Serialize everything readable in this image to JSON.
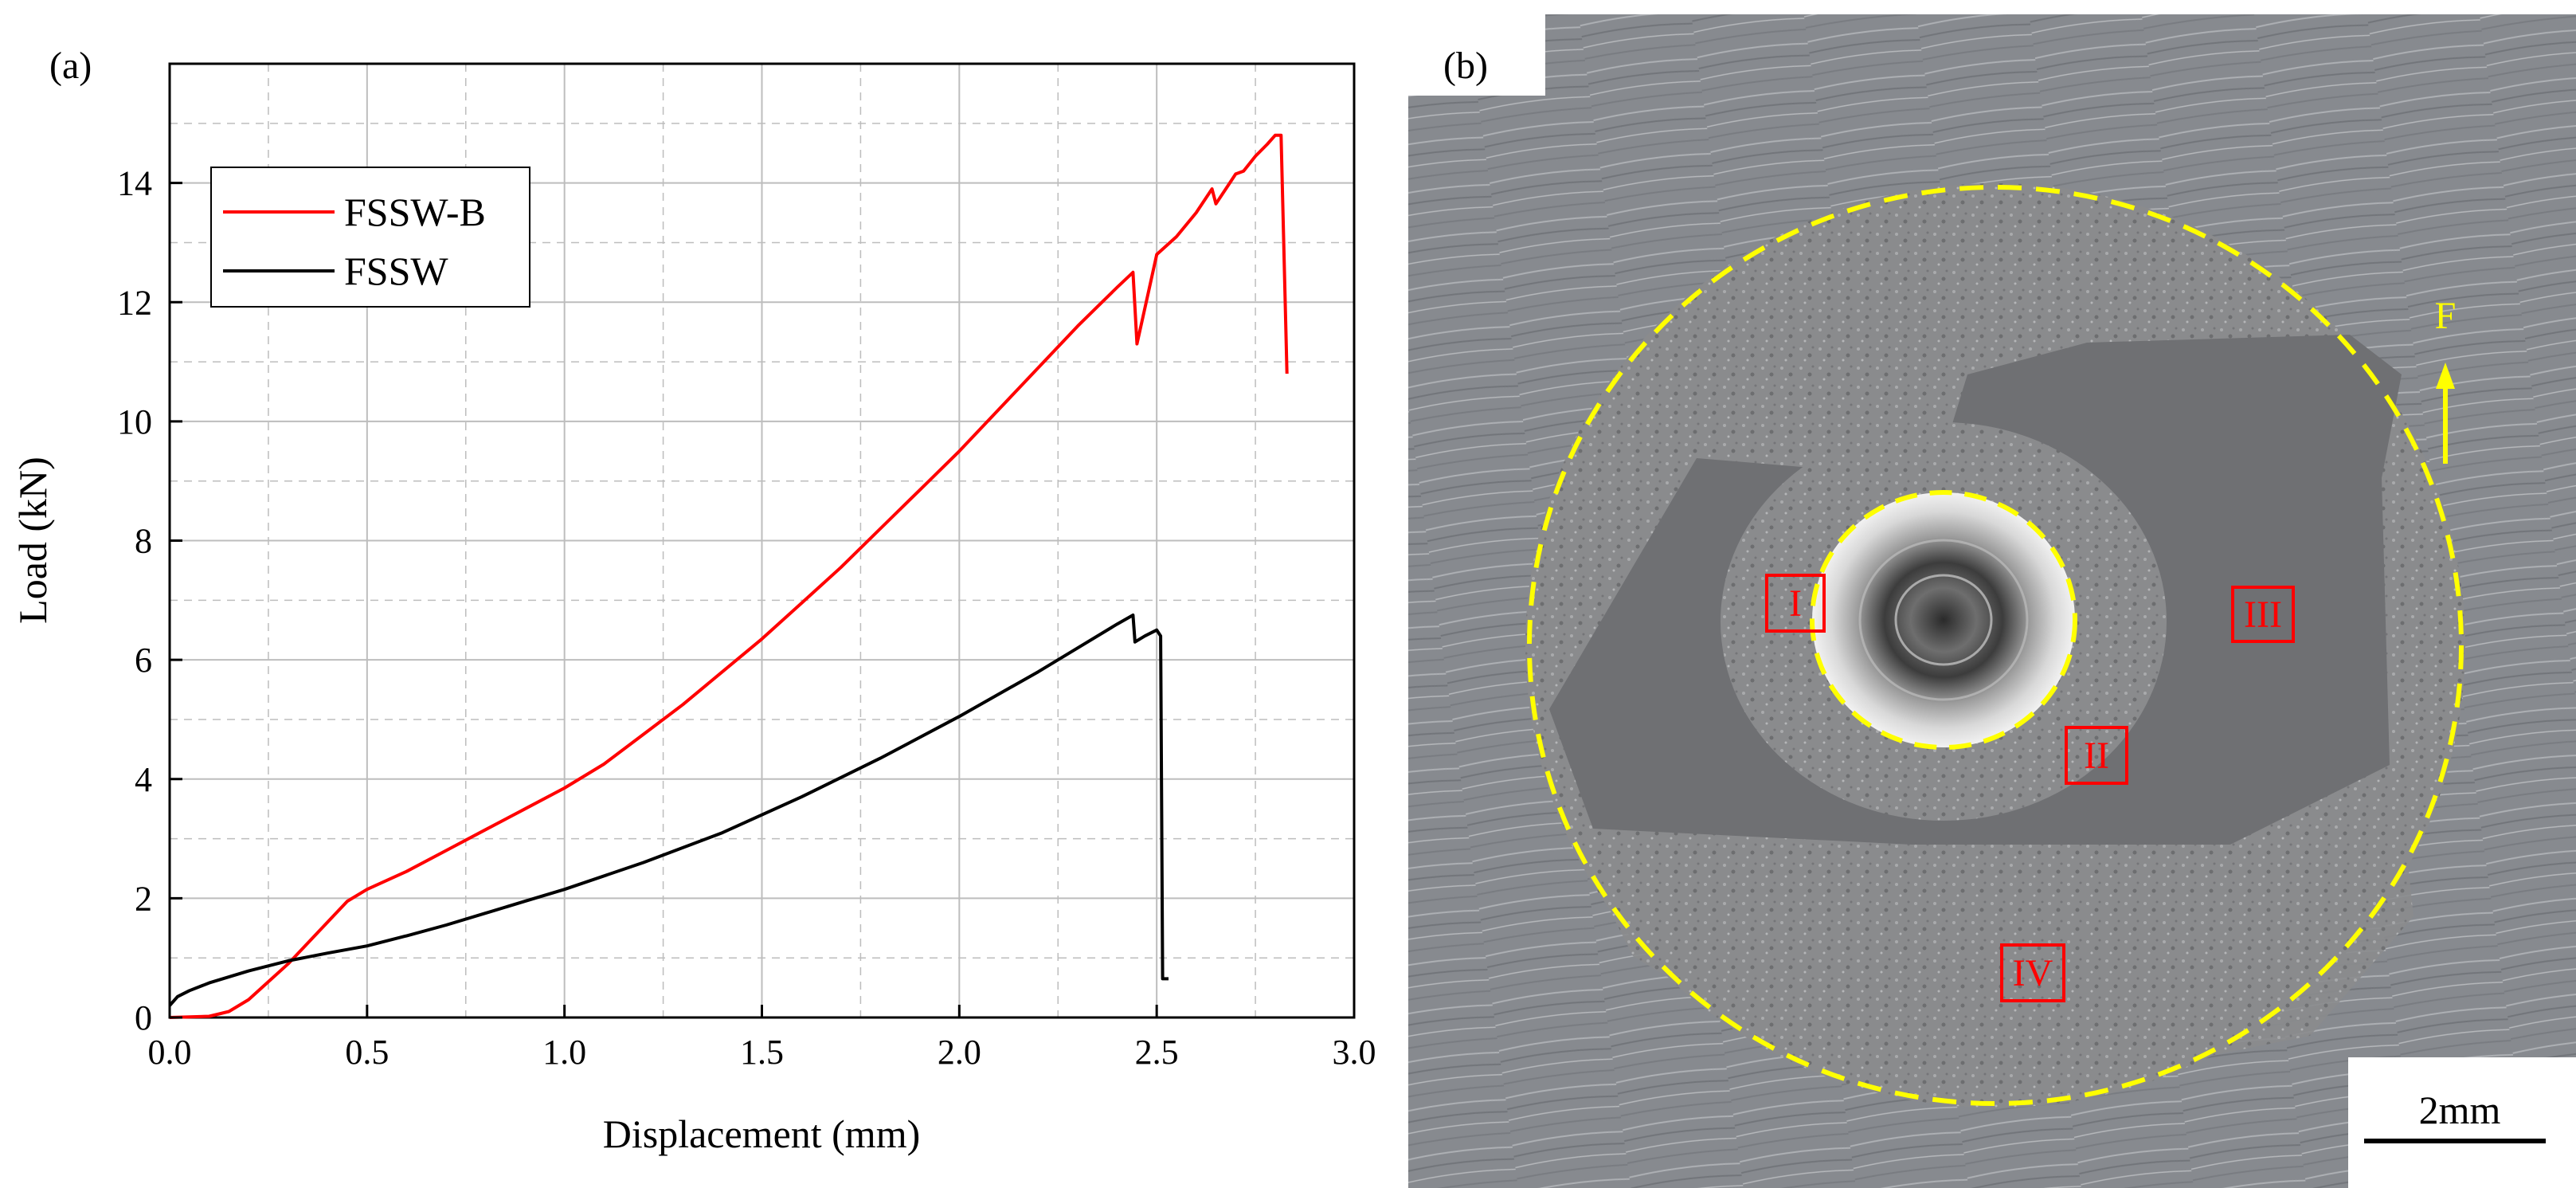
{
  "panels": {
    "a": {
      "label": "(a)"
    },
    "b": {
      "label": "(b)"
    }
  },
  "chart_data": {
    "type": "line",
    "title": "",
    "xlabel": "Displacement (mm)",
    "ylabel": "Load (kN)",
    "xlim": [
      0,
      3.0
    ],
    "ylim": [
      0,
      16
    ],
    "grid": true,
    "legend_position": "top-left",
    "x_ticks": [
      "0.0",
      "0.5",
      "1.0",
      "1.5",
      "2.0",
      "2.5",
      "3.0"
    ],
    "y_ticks": [
      "0",
      "2",
      "4",
      "6",
      "8",
      "10",
      "12",
      "14"
    ],
    "series": [
      {
        "name": "FSSW-B",
        "color": "#ff0000",
        "points": [
          [
            0.0,
            0.0
          ],
          [
            0.1,
            0.02
          ],
          [
            0.15,
            0.1
          ],
          [
            0.2,
            0.3
          ],
          [
            0.25,
            0.6
          ],
          [
            0.3,
            0.9
          ],
          [
            0.35,
            1.25
          ],
          [
            0.4,
            1.6
          ],
          [
            0.45,
            1.95
          ],
          [
            0.5,
            2.15
          ],
          [
            0.6,
            2.45
          ],
          [
            0.7,
            2.8
          ],
          [
            0.8,
            3.15
          ],
          [
            0.9,
            3.5
          ],
          [
            1.0,
            3.85
          ],
          [
            1.1,
            4.25
          ],
          [
            1.2,
            4.75
          ],
          [
            1.3,
            5.25
          ],
          [
            1.4,
            5.8
          ],
          [
            1.5,
            6.35
          ],
          [
            1.6,
            6.95
          ],
          [
            1.7,
            7.55
          ],
          [
            1.8,
            8.2
          ],
          [
            1.9,
            8.85
          ],
          [
            2.0,
            9.5
          ],
          [
            2.1,
            10.2
          ],
          [
            2.2,
            10.9
          ],
          [
            2.3,
            11.6
          ],
          [
            2.4,
            12.25
          ],
          [
            2.44,
            12.5
          ],
          [
            2.45,
            11.3
          ],
          [
            2.48,
            12.2
          ],
          [
            2.5,
            12.8
          ],
          [
            2.55,
            13.1
          ],
          [
            2.6,
            13.5
          ],
          [
            2.64,
            13.9
          ],
          [
            2.65,
            13.65
          ],
          [
            2.68,
            13.95
          ],
          [
            2.7,
            14.15
          ],
          [
            2.72,
            14.2
          ],
          [
            2.75,
            14.45
          ],
          [
            2.78,
            14.65
          ],
          [
            2.8,
            14.8
          ],
          [
            2.815,
            14.8
          ],
          [
            2.83,
            10.8
          ]
        ]
      },
      {
        "name": "FSSW",
        "color": "#000000",
        "points": [
          [
            0.0,
            0.2
          ],
          [
            0.02,
            0.35
          ],
          [
            0.05,
            0.45
          ],
          [
            0.1,
            0.58
          ],
          [
            0.2,
            0.78
          ],
          [
            0.3,
            0.95
          ],
          [
            0.4,
            1.08
          ],
          [
            0.5,
            1.2
          ],
          [
            0.6,
            1.37
          ],
          [
            0.7,
            1.55
          ],
          [
            0.8,
            1.75
          ],
          [
            0.9,
            1.95
          ],
          [
            1.0,
            2.15
          ],
          [
            1.2,
            2.6
          ],
          [
            1.4,
            3.1
          ],
          [
            1.6,
            3.7
          ],
          [
            1.8,
            4.35
          ],
          [
            2.0,
            5.05
          ],
          [
            2.2,
            5.8
          ],
          [
            2.3,
            6.2
          ],
          [
            2.4,
            6.6
          ],
          [
            2.44,
            6.75
          ],
          [
            2.445,
            6.3
          ],
          [
            2.47,
            6.4
          ],
          [
            2.5,
            6.5
          ],
          [
            2.51,
            6.4
          ],
          [
            2.515,
            0.65
          ],
          [
            2.53,
            0.65
          ]
        ]
      }
    ]
  },
  "micrograph": {
    "region_labels": [
      "I",
      "II",
      "III",
      "IV"
    ],
    "direction_label": "F",
    "scale_bar_label": "2mm",
    "outline_color": "#ffff00",
    "label_color": "#ff0000"
  }
}
